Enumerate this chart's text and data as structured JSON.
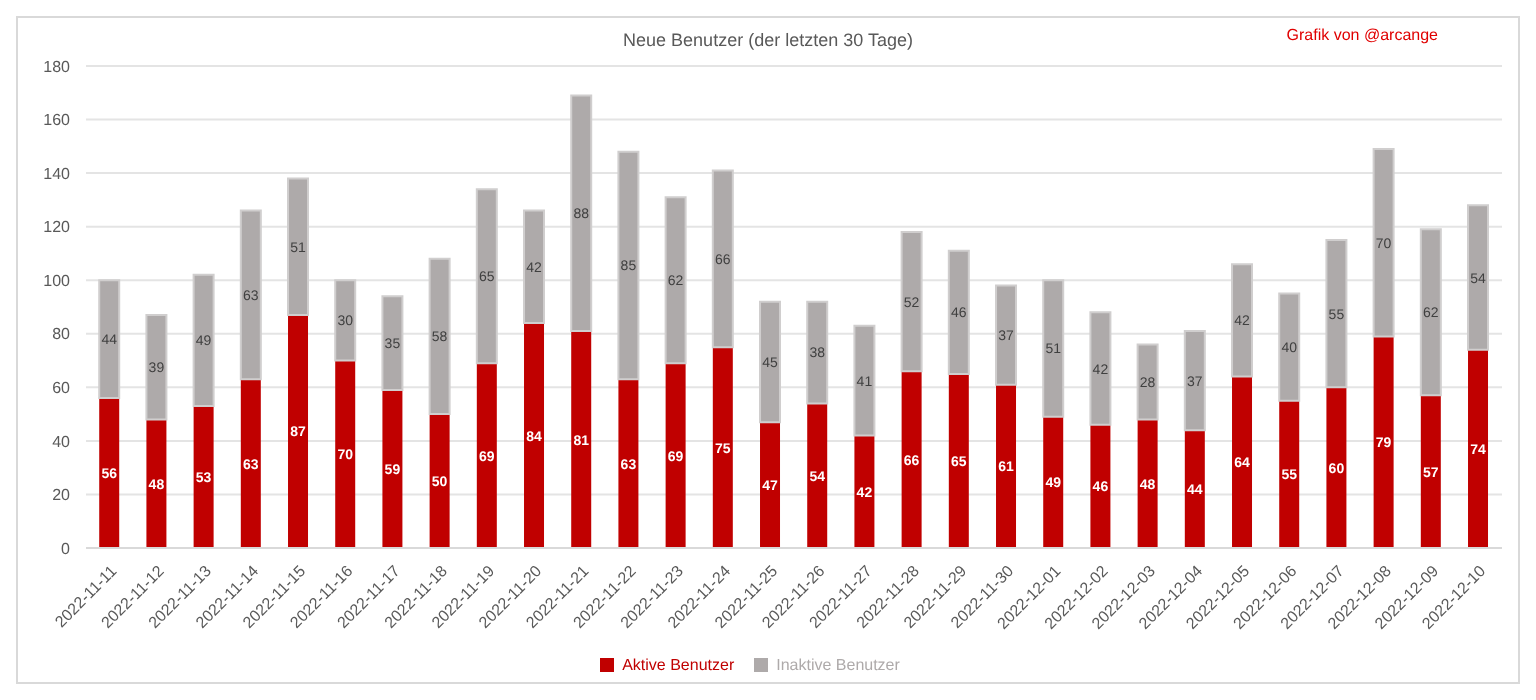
{
  "chart_data": {
    "type": "bar",
    "title": "Neue Benutzer (der letzten 30 Tage)",
    "annotations": [
      "Grafik von @arcange"
    ],
    "categories": [
      "2022-11-11",
      "2022-11-12",
      "2022-11-13",
      "2022-11-14",
      "2022-11-15",
      "2022-11-16",
      "2022-11-17",
      "2022-11-18",
      "2022-11-19",
      "2022-11-20",
      "2022-11-21",
      "2022-11-22",
      "2022-11-23",
      "2022-11-24",
      "2022-11-25",
      "2022-11-26",
      "2022-11-27",
      "2022-11-28",
      "2022-11-29",
      "2022-11-30",
      "2022-12-01",
      "2022-12-02",
      "2022-12-03",
      "2022-12-04",
      "2022-12-05",
      "2022-12-06",
      "2022-12-07",
      "2022-12-08",
      "2022-12-09",
      "2022-12-10"
    ],
    "series": [
      {
        "name": "Aktive Benutzer",
        "color": "#c00000",
        "values": [
          56,
          48,
          53,
          63,
          87,
          70,
          59,
          50,
          69,
          84,
          81,
          63,
          69,
          75,
          47,
          54,
          42,
          66,
          65,
          61,
          49,
          46,
          48,
          44,
          64,
          55,
          60,
          79,
          57,
          74
        ]
      },
      {
        "name": "Inaktive Benutzer",
        "color": "#aeaaaa",
        "values": [
          44,
          39,
          49,
          63,
          51,
          30,
          35,
          58,
          65,
          42,
          88,
          85,
          62,
          66,
          45,
          38,
          41,
          52,
          46,
          37,
          51,
          42,
          28,
          37,
          42,
          40,
          55,
          70,
          62,
          54
        ]
      }
    ],
    "stacked": true,
    "data_labels": true,
    "ylim": [
      0,
      180
    ],
    "yticks": [
      0,
      20,
      40,
      60,
      80,
      100,
      120,
      140,
      160,
      180
    ],
    "grid": "y",
    "legend": "bottom"
  }
}
